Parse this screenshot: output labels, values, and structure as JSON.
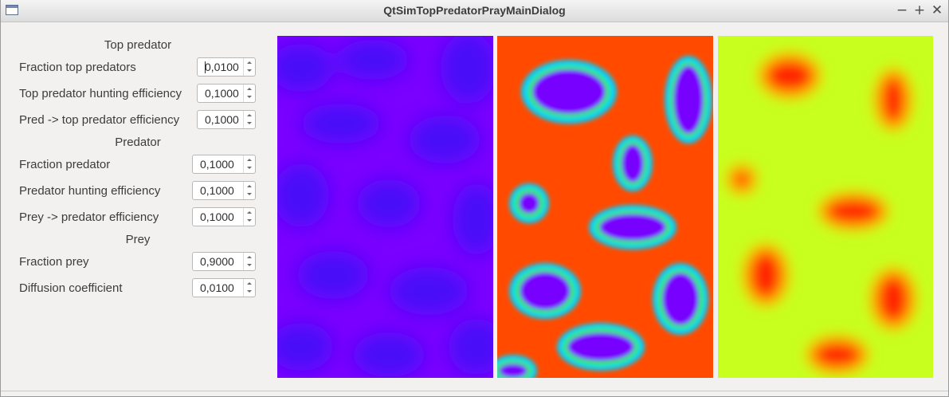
{
  "window": {
    "title": "QtSimTopPredatorPrayMainDialog",
    "minimize_glyph": "−",
    "maximize_glyph": "+",
    "close_glyph": "✕"
  },
  "top_predator": {
    "heading": "Top predator",
    "fraction": {
      "label": "Fraction top predators",
      "value": "0,0100"
    },
    "hunting_efficiency": {
      "label": "Top predator hunting efficiency",
      "value": "0,1000"
    },
    "pred_to_top_efficiency": {
      "label": "Pred -> top predator efficiency",
      "value": "0,1000"
    }
  },
  "predator": {
    "heading": "Predator",
    "fraction": {
      "label": "Fraction predator",
      "value": "0,1000"
    },
    "hunting_efficiency": {
      "label": "Predator hunting efficiency",
      "value": "0,1000"
    },
    "prey_to_pred_efficiency": {
      "label": "Prey -> predator efficiency",
      "value": "0,1000"
    }
  },
  "prey": {
    "heading": "Prey",
    "fraction": {
      "label": "Fraction prey",
      "value": "0,9000"
    },
    "diffusion": {
      "label": "Diffusion coefficient",
      "value": "0,0100"
    }
  },
  "panels": {
    "top_predator_colors": {
      "base": "#7a00ff",
      "patch": "#4a10f8"
    },
    "predator_colors": {
      "base": "#ff4a00",
      "edge": "#00d0ff",
      "mid": "#33ee55",
      "core": "#7800ff"
    },
    "prey_colors": {
      "base": "#c8ff1e",
      "patch": "#ff2800",
      "mid": "#ffc000"
    }
  }
}
